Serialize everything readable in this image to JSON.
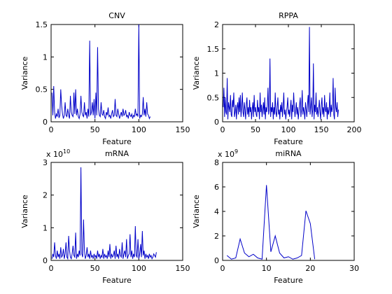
{
  "colors": {
    "series": "#0000c8",
    "axis": "#000000",
    "background": "#ffffff"
  },
  "chart_data": [
    {
      "id": "cnv",
      "type": "line",
      "title": "CNV",
      "xlabel": "Feature",
      "ylabel": "Variance",
      "exponent": "",
      "xlim": [
        0,
        150
      ],
      "ylim": [
        0,
        1.5
      ],
      "xticks": [
        0,
        50,
        100,
        150
      ],
      "yticks": [
        0,
        0.5,
        1,
        1.5
      ],
      "xtick_labels": [
        "0",
        "50",
        "100",
        "150"
      ],
      "ytick_labels": [
        "0",
        "0.5",
        "1",
        "1.5"
      ],
      "series": [
        {
          "values": [
            0.45,
            0.1,
            0.55,
            0.15,
            0.05,
            0.12,
            0.08,
            0.2,
            0.06,
            0.1,
            0.5,
            0.25,
            0.12,
            0.05,
            0.1,
            0.3,
            0.1,
            0.08,
            0.2,
            0.1,
            0.05,
            0.4,
            0.15,
            0.1,
            0.08,
            0.45,
            0.12,
            0.5,
            0.1,
            0.2,
            0.08,
            0.05,
            0.12,
            0.4,
            0.15,
            0.1,
            0.08,
            0.3,
            0.1,
            0.15,
            0.05,
            0.2,
            0.08,
            1.25,
            0.1,
            0.15,
            0.3,
            0.1,
            0.35,
            0.05,
            0.45,
            0.1,
            1.15,
            0.2,
            0.1,
            0.08,
            0.3,
            0.12,
            0.1,
            0.18,
            0.08,
            0.05,
            0.15,
            0.1,
            0.22,
            0.08,
            0.1,
            0.05,
            0.12,
            0.18,
            0.08,
            0.1,
            0.35,
            0.1,
            0.08,
            0.2,
            0.12,
            0.05,
            0.1,
            0.15,
            0.08,
            0.2,
            0.1,
            0.12,
            0.18,
            0.08,
            0.1,
            0.05,
            0.15,
            0.1,
            0.08,
            0.12,
            0.05,
            0.1,
            0.08,
            0.2,
            0.1,
            0.12,
            0.08,
            1.5,
            0.05,
            0.1,
            0.08,
            0.12,
            0.38,
            0.1,
            0.2,
            0.08,
            0.3,
            0.12,
            0.1,
            0.05,
            0.08
          ]
        }
      ]
    },
    {
      "id": "rppa",
      "type": "line",
      "title": "RPPA",
      "xlabel": "Feature",
      "ylabel": "Variance",
      "exponent": "",
      "xlim": [
        0,
        200
      ],
      "ylim": [
        0,
        2
      ],
      "xticks": [
        0,
        50,
        100,
        150,
        200
      ],
      "yticks": [
        0,
        0.5,
        1,
        1.5,
        2
      ],
      "xtick_labels": [
        "0",
        "50",
        "100",
        "150",
        "200"
      ],
      "ytick_labels": [
        "0",
        "0.5",
        "1",
        "1.5",
        "2"
      ],
      "series": [
        {
          "values": [
            0.3,
            0.7,
            0.1,
            0.5,
            0.2,
            0.15,
            0.9,
            0.05,
            0.4,
            0.3,
            0.2,
            0.55,
            0.15,
            0.1,
            0.45,
            0.3,
            0.6,
            0.1,
            0.2,
            0.35,
            0.05,
            0.3,
            0.4,
            0.15,
            0.5,
            0.2,
            0.55,
            0.1,
            0.3,
            0.6,
            0.2,
            0.1,
            0.4,
            0.25,
            0.05,
            0.35,
            0.5,
            0.15,
            0.3,
            0.1,
            0.45,
            0.2,
            0.3,
            0.05,
            0.25,
            0.4,
            0.1,
            0.55,
            0.2,
            0.3,
            0.15,
            0.1,
            0.45,
            0.2,
            0.3,
            0.05,
            0.6,
            0.2,
            0.35,
            0.1,
            0.25,
            0.4,
            0.15,
            0.5,
            0.05,
            0.3,
            0.2,
            0.35,
            0.7,
            0.15,
            0.25,
            1.3,
            0.1,
            0.3,
            0.2,
            0.4,
            0.05,
            0.3,
            0.15,
            0.6,
            0.2,
            0.1,
            0.3,
            0.5,
            0.15,
            0.25,
            0.05,
            0.35,
            0.2,
            0.4,
            0.1,
            0.3,
            0.6,
            0.15,
            0.25,
            0.05,
            0.2,
            0.3,
            0.5,
            0.15,
            0.25,
            0.1,
            0.3,
            0.45,
            0.05,
            0.35,
            0.2,
            0.6,
            0.3,
            0.1,
            0.25,
            0.4,
            0.15,
            0.3,
            0.05,
            0.2,
            0.35,
            0.5,
            0.1,
            0.25,
            0.65,
            0.15,
            0.3,
            0.2,
            0.05,
            0.4,
            0.25,
            0.1,
            0.35,
            0.55,
            0.2,
            1.95,
            0.15,
            0.3,
            0.5,
            0.1,
            0.25,
            1.2,
            0.05,
            0.35,
            0.2,
            0.6,
            0.15,
            0.3,
            0.1,
            0.25,
            0.45,
            0.2,
            0.05,
            0.35,
            0.5,
            0.15,
            0.3,
            0.1,
            0.55,
            0.25,
            0.2,
            0.4,
            0.05,
            0.3,
            0.15,
            0.25,
            0.6,
            0.1,
            0.35,
            0.2,
            0.3,
            0.9,
            0.15,
            0.05,
            0.7,
            0.3,
            0.2,
            0.4,
            0.1,
            0.25
          ]
        }
      ]
    },
    {
      "id": "mrna",
      "type": "line",
      "title": "mRNA",
      "xlabel": "Feature",
      "ylabel": "Variance",
      "exponent": "x 10",
      "exponent_power": "10",
      "xlim": [
        0,
        150
      ],
      "ylim": [
        0,
        3
      ],
      "xticks": [
        0,
        50,
        100,
        150
      ],
      "yticks": [
        0,
        1,
        2,
        3
      ],
      "xtick_labels": [
        "0",
        "50",
        "100",
        "150"
      ],
      "ytick_labels": [
        "0",
        "1",
        "2",
        "3"
      ],
      "series": [
        {
          "values": [
            0.05,
            0.2,
            0.1,
            0.55,
            0.15,
            0.05,
            0.3,
            0.1,
            0.2,
            0.05,
            0.4,
            0.1,
            0.15,
            0.35,
            0.05,
            0.2,
            0.55,
            0.1,
            0.05,
            0.75,
            0.3,
            0.1,
            0.05,
            0.2,
            0.45,
            0.15,
            0.1,
            0.85,
            0.05,
            0.2,
            0.1,
            0.3,
            0.15,
            2.85,
            0.2,
            0.1,
            1.25,
            0.3,
            0.05,
            0.15,
            0.4,
            0.1,
            0.2,
            0.05,
            0.3,
            0.1,
            0.15,
            0.05,
            0.2,
            0.1,
            0.15,
            0.05,
            0.3,
            0.1,
            0.2,
            0.05,
            0.15,
            0.1,
            0.35,
            0.05,
            0.2,
            0.1,
            0.15,
            0.05,
            0.3,
            0.1,
            0.5,
            0.05,
            0.2,
            0.1,
            0.15,
            0.3,
            0.05,
            0.45,
            0.1,
            0.2,
            0.05,
            0.35,
            0.15,
            0.1,
            0.55,
            0.05,
            0.2,
            0.3,
            0.1,
            0.65,
            0.05,
            0.15,
            0.2,
            0.8,
            0.1,
            0.3,
            0.05,
            0.2,
            0.1,
            1.05,
            0.15,
            0.1,
            0.65,
            0.05,
            0.2,
            0.5,
            0.1,
            0.9,
            0.15,
            0.3,
            0.05,
            0.2,
            0.1,
            0.15,
            0.05,
            0.2,
            0.1,
            0.15,
            0.05,
            0.1,
            0.2,
            0.15,
            0.1,
            0.25
          ]
        }
      ]
    },
    {
      "id": "mirna",
      "type": "line",
      "title": "miRNA",
      "xlabel": "Feature",
      "ylabel": "Variance",
      "exponent": "x 10",
      "exponent_power": "9",
      "xlim": [
        0,
        30
      ],
      "ylim": [
        0,
        8
      ],
      "xticks": [
        0,
        10,
        20,
        30
      ],
      "yticks": [
        0,
        2,
        4,
        6,
        8
      ],
      "xtick_labels": [
        "0",
        "10",
        "20",
        "30"
      ],
      "ytick_labels": [
        "0",
        "2",
        "4",
        "6",
        "8"
      ],
      "series": [
        {
          "x": [
            1,
            2,
            3,
            4,
            5,
            6,
            7,
            8,
            9,
            10,
            11,
            12,
            13,
            14,
            15,
            16,
            17,
            18,
            19,
            20,
            21
          ],
          "values": [
            0.4,
            0.1,
            0.2,
            1.75,
            0.6,
            0.3,
            0.5,
            0.2,
            0.1,
            6.15,
            0.7,
            2.0,
            0.6,
            0.2,
            0.3,
            0.1,
            0.2,
            0.4,
            4.05,
            3.0,
            0.1
          ]
        }
      ]
    }
  ]
}
